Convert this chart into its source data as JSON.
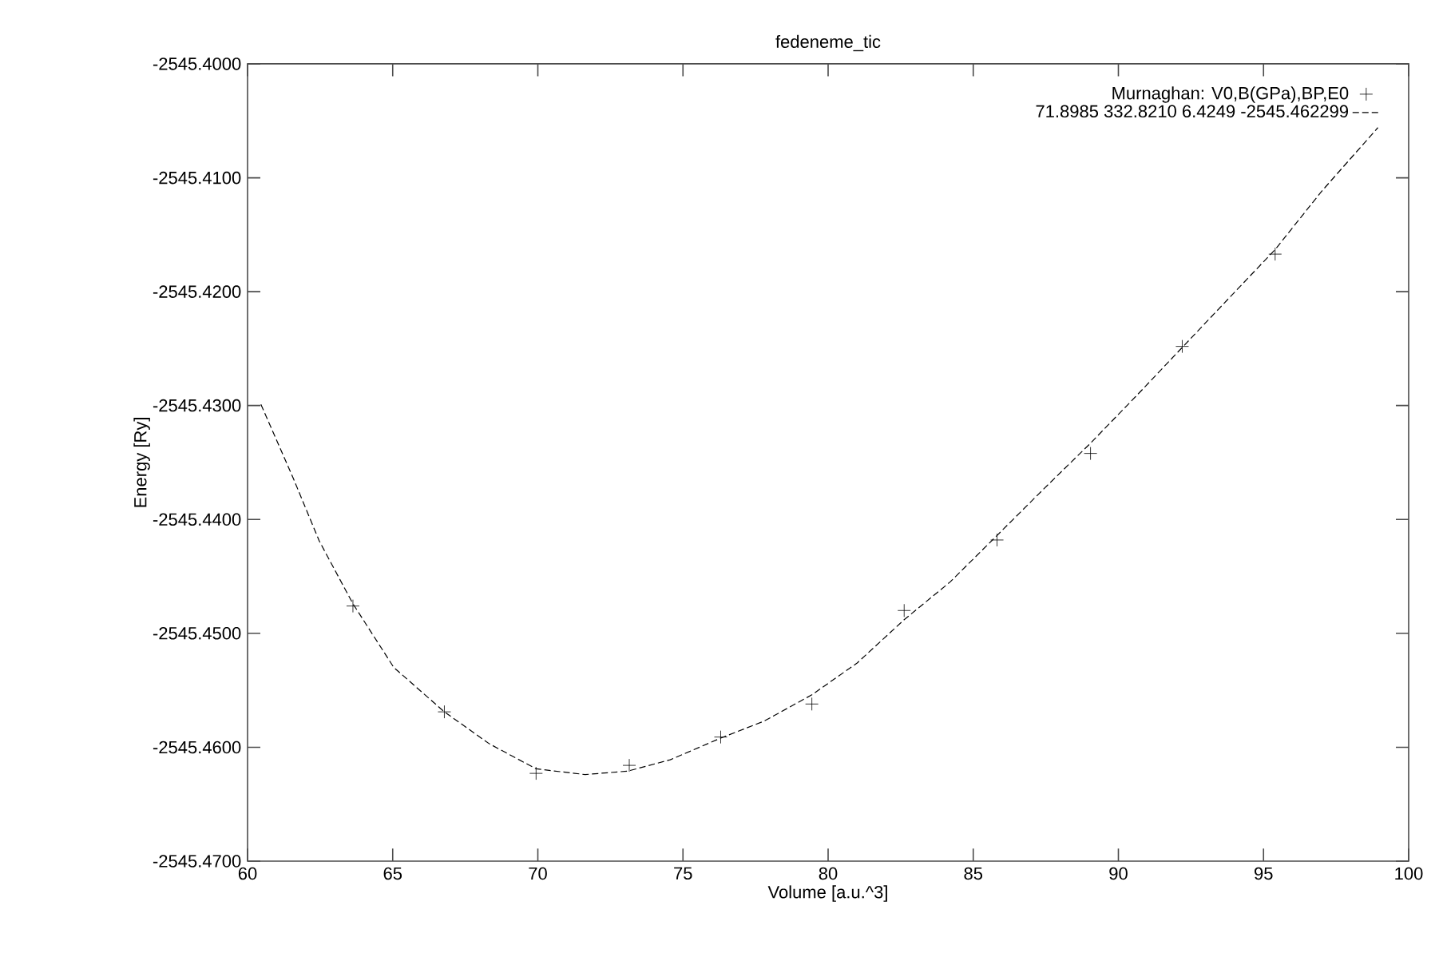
{
  "chart_data": {
    "type": "scatter",
    "title": "fedeneme_tic",
    "xlabel": "Volume [a.u.^3]",
    "ylabel": "Energy [Ry]",
    "xlim": [
      60,
      100
    ],
    "xticks": [
      60,
      65,
      70,
      75,
      80,
      85,
      90,
      95,
      100
    ],
    "ylim": [
      -2545.47,
      -2545.4
    ],
    "yticks": [
      {
        "value": -2545.47,
        "label": "-2545.4700"
      },
      {
        "value": -2545.46,
        "label": "-2545.4600"
      },
      {
        "value": -2545.45,
        "label": "-2545.4500"
      },
      {
        "value": -2545.44,
        "label": "-2545.4400"
      },
      {
        "value": -2545.43,
        "label": "-2545.4300"
      },
      {
        "value": -2545.42,
        "label": "-2545.4200"
      },
      {
        "value": -2545.41,
        "label": "-2545.4100"
      },
      {
        "value": -2545.4,
        "label": "-2545.4000"
      }
    ],
    "legend": "top right",
    "grid": false,
    "series": [
      {
        "name": "Murnaghan: V0,B(GPa),BP,E0",
        "marker": "cross",
        "color": "#000000",
        "x": [
          63.63,
          66.78,
          69.94,
          73.15,
          76.3,
          79.44,
          82.62,
          85.82,
          89.04,
          92.2,
          95.4
        ],
        "values": [
          -2545.4476,
          -2545.4569,
          -2545.4623,
          -2545.4616,
          -2545.4591,
          -2545.4562,
          -2545.448,
          -2545.4418,
          -2545.4342,
          -2545.4248,
          -2545.4167
        ]
      },
      {
        "name": "71.8985 332.8210 6.4249 -2545.462299",
        "type": "line",
        "line_style": "dashed",
        "marker": "none",
        "color": "#000000",
        "x": [
          60.46,
          61.56,
          62.47,
          63.63,
          65.04,
          66.78,
          68.33,
          69.94,
          71.63,
          73.1,
          74.56,
          76.3,
          77.8,
          79.44,
          81.0,
          82.62,
          84.2,
          85.82,
          87.4,
          89.04,
          90.6,
          92.2,
          93.8,
          95.4,
          97.0,
          98.94
        ],
        "values": [
          -2545.4299,
          -2545.4363,
          -2545.4419,
          -2545.4474,
          -2545.453,
          -2545.4569,
          -2545.4597,
          -2545.4619,
          -2545.4624,
          -2545.4621,
          -2545.4611,
          -2545.4592,
          -2545.4577,
          -2545.4554,
          -2545.4526,
          -2545.4488,
          -2545.4455,
          -2545.4414,
          -2545.4374,
          -2545.4333,
          -2545.4292,
          -2545.4249,
          -2545.4206,
          -2545.4163,
          -2545.4112,
          -2545.4056
        ]
      }
    ]
  }
}
